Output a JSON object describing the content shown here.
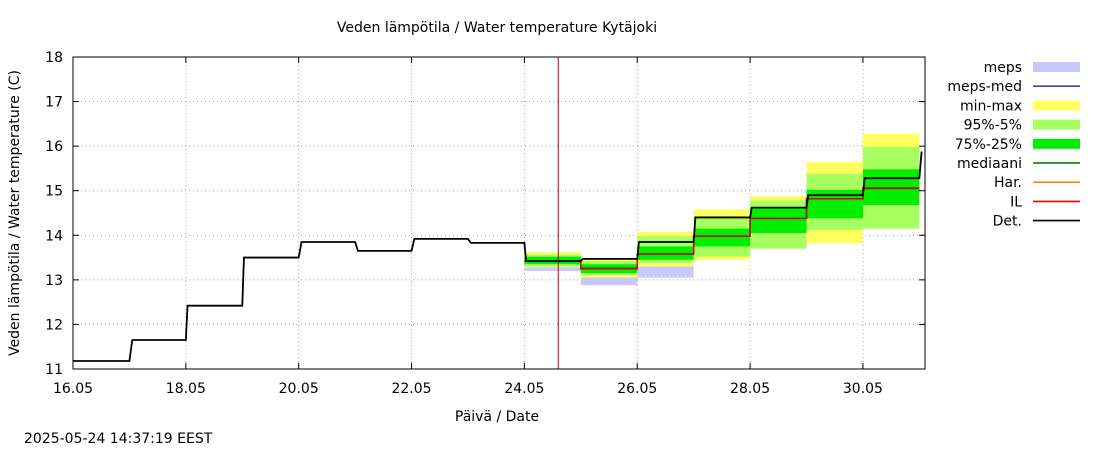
{
  "chart_data": {
    "type": "line",
    "title": "Veden lämpötila / Water temperature Kytäjoki",
    "xlabel": "Päivä / Date",
    "ylabel": "Veden lämpötila / Water temperature (C)",
    "timestamp": "2025-05-24 14:37:19 EEST",
    "xlim": [
      16,
      31.1
    ],
    "ylim": [
      11,
      18
    ],
    "x_ticks": [
      {
        "v": 16,
        "label": "16.05"
      },
      {
        "v": 18,
        "label": "18.05"
      },
      {
        "v": 20,
        "label": "20.05"
      },
      {
        "v": 22,
        "label": "22.05"
      },
      {
        "v": 24,
        "label": "24.05"
      },
      {
        "v": 26,
        "label": "26.05"
      },
      {
        "v": 28,
        "label": "28.05"
      },
      {
        "v": 30,
        "label": "30.05"
      }
    ],
    "y_ticks": [
      11,
      12,
      13,
      14,
      15,
      16,
      17,
      18
    ],
    "grid": true,
    "current_time": 24.6,
    "legend": {
      "position": "right",
      "items": [
        {
          "label": "meps",
          "type": "band",
          "color": "#c8c8ff"
        },
        {
          "label": "meps-med",
          "type": "line",
          "color": "#4040c0"
        },
        {
          "label": "min-max",
          "type": "band",
          "color": "#ffff60"
        },
        {
          "label": "95%-5%",
          "type": "band",
          "color": "#a8ff60"
        },
        {
          "label": "75%-25%",
          "type": "band",
          "color": "#00ee00"
        },
        {
          "label": "mediaani",
          "type": "line",
          "color": "#007000"
        },
        {
          "label": "Har.",
          "type": "line",
          "color": "#ff8800"
        },
        {
          "label": "IL",
          "type": "line",
          "color": "#e00000"
        },
        {
          "label": "Det.",
          "type": "line",
          "color": "#000000"
        }
      ]
    },
    "forecast_days": [
      {
        "x0": 24,
        "x1": 25,
        "minmax": [
          13.28,
          13.62
        ],
        "p95_5": [
          13.3,
          13.57
        ],
        "p75_25": [
          13.35,
          13.52
        ],
        "meps": [
          13.2,
          13.5
        ],
        "median": 13.43,
        "il": 13.42,
        "det": 13.42
      },
      {
        "x0": 25,
        "x1": 26,
        "minmax": [
          13.05,
          13.48
        ],
        "p95_5": [
          13.1,
          13.42
        ],
        "p75_25": [
          13.15,
          13.35
        ],
        "meps": [
          12.88,
          13.2
        ],
        "median": 13.26,
        "il": 13.25,
        "det": 13.47
      },
      {
        "x0": 26,
        "x1": 27,
        "minmax": [
          13.3,
          14.08
        ],
        "p95_5": [
          13.38,
          13.98
        ],
        "p75_25": [
          13.45,
          13.75
        ],
        "meps": [
          13.05,
          13.3
        ],
        "median": 13.58,
        "il": 13.58,
        "det": 13.85
      },
      {
        "x0": 27,
        "x1": 28,
        "minmax": [
          13.45,
          14.58
        ],
        "p95_5": [
          13.52,
          14.42
        ],
        "p75_25": [
          13.75,
          14.15
        ],
        "meps": null,
        "median": 13.98,
        "il": 13.98,
        "det": 14.4
      },
      {
        "x0": 28,
        "x1": 29,
        "minmax": [
          13.7,
          14.88
        ],
        "p95_5": [
          13.7,
          14.78
        ],
        "p75_25": [
          14.05,
          14.62
        ],
        "meps": null,
        "median": 14.38,
        "il": 14.38,
        "det": 14.62
      },
      {
        "x0": 29,
        "x1": 30,
        "minmax": [
          13.82,
          15.65
        ],
        "p95_5": [
          14.12,
          15.38
        ],
        "p75_25": [
          14.38,
          15.02
        ],
        "meps": null,
        "median": 14.82,
        "il": 14.82,
        "det": 14.9
      },
      {
        "x0": 30,
        "x1": 31,
        "minmax": [
          14.15,
          16.28
        ],
        "p95_5": [
          14.15,
          15.98
        ],
        "p75_25": [
          14.68,
          15.48
        ],
        "meps": null,
        "median": 15.05,
        "il": 15.06,
        "det": 15.28
      }
    ],
    "observed": [
      [
        16.0,
        11.18
      ],
      [
        17.0,
        11.18
      ],
      [
        17.05,
        11.65
      ],
      [
        18.0,
        11.65
      ],
      [
        18.03,
        12.42
      ],
      [
        19.0,
        12.42
      ],
      [
        19.03,
        13.5
      ],
      [
        20.0,
        13.5
      ],
      [
        20.05,
        13.85
      ],
      [
        21.0,
        13.85
      ],
      [
        21.05,
        13.65
      ],
      [
        22.0,
        13.65
      ],
      [
        22.05,
        13.92
      ],
      [
        23.0,
        13.92
      ],
      [
        23.05,
        13.83
      ],
      [
        24.0,
        13.83
      ],
      [
        24.03,
        13.42
      ]
    ]
  }
}
